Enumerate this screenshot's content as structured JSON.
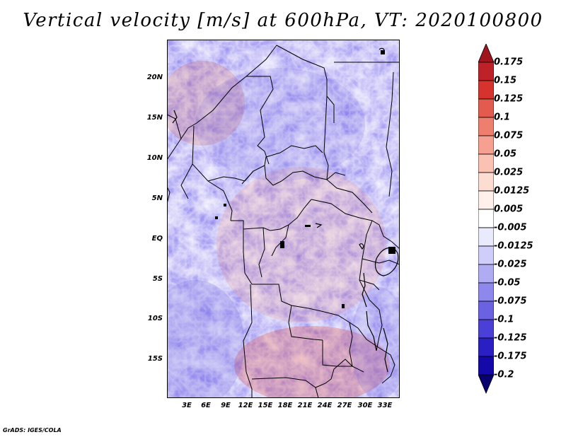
{
  "title": "Vertical velocity [m/s] at 600hPa, VT: 2020100800",
  "credit": "GrADS: IGES/COLA",
  "map": {
    "field": "vertical velocity",
    "level": "600hPa",
    "lat_range": [
      -20,
      25
    ],
    "lon_range": [
      0,
      36
    ],
    "lat_ticks": [
      {
        "value": 20,
        "label": "20N"
      },
      {
        "value": 15,
        "label": "15N"
      },
      {
        "value": 10,
        "label": "10N"
      },
      {
        "value": 5,
        "label": "5N"
      },
      {
        "value": 0,
        "label": "EQ"
      },
      {
        "value": -5,
        "label": "5S"
      },
      {
        "value": -10,
        "label": "10S"
      },
      {
        "value": -15,
        "label": "15S"
      }
    ],
    "lon_ticks": [
      {
        "value": 3,
        "label": "3E"
      },
      {
        "value": 6,
        "label": "6E"
      },
      {
        "value": 9,
        "label": "9E"
      },
      {
        "value": 12,
        "label": "12E"
      },
      {
        "value": 15,
        "label": "15E"
      },
      {
        "value": 18,
        "label": "18E"
      },
      {
        "value": 21,
        "label": "21E"
      },
      {
        "value": 24,
        "label": "24E"
      },
      {
        "value": 27,
        "label": "27E"
      },
      {
        "value": 30,
        "label": "30E"
      },
      {
        "value": 33,
        "label": "33E"
      }
    ]
  },
  "colorbar": {
    "labels": [
      "0.175",
      "0.15",
      "0.125",
      "0.1",
      "0.075",
      "0.05",
      "0.025",
      "0.0125",
      "0.005",
      "-0.005",
      "-0.0125",
      "-0.025",
      "-0.05",
      "-0.075",
      "-0.1",
      "-0.125",
      "-0.175",
      "-0.2"
    ],
    "colors": [
      "#a0141e",
      "#be2127",
      "#d6332f",
      "#e35a4e",
      "#ee7e6e",
      "#f5a090",
      "#fbc2b4",
      "#fddcd2",
      "#fff0ec",
      "#ffffff",
      "#eaeafd",
      "#cfcdf9",
      "#b0acf3",
      "#8f88ec",
      "#6b62e2",
      "#4a3fd6",
      "#2a1fc2",
      "#1408a8",
      "#08006e"
    ]
  }
}
